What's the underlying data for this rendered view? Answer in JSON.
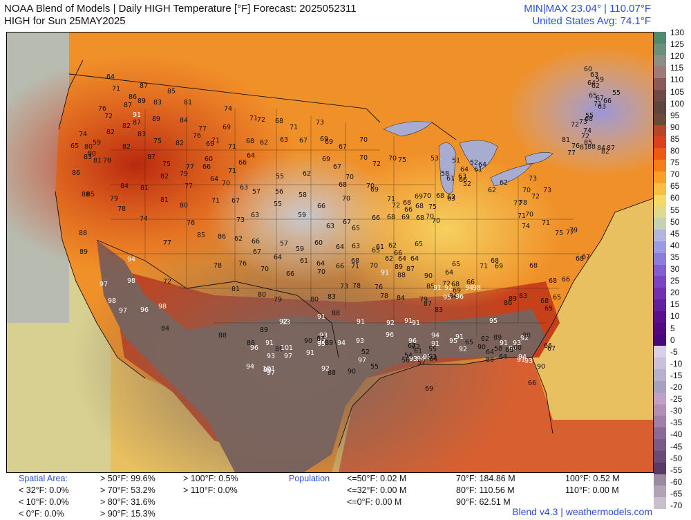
{
  "header": {
    "line1": "NOAA Blend of Models | Daily HIGH Temperature [°F] Forecast: 2025052311",
    "line2": "HIGH for Sun 25MAY2025",
    "minmax": "MIN|MAX 23.04° | 110.07°F",
    "avg": "United States Avg: 74.1°F"
  },
  "colorbar": {
    "ticks": [
      "130",
      "125",
      "120",
      "115",
      "110",
      "105",
      "100",
      "95",
      "90",
      "85",
      "80",
      "75",
      "70",
      "65",
      "60",
      "55",
      "50",
      "45",
      "40",
      "35",
      "30",
      "25",
      "20",
      "15",
      "10",
      "5",
      "0",
      "-5",
      "-10",
      "-15",
      "-20",
      "-25",
      "-30",
      "-35",
      "-40",
      "-45",
      "-50",
      "-55",
      "-60",
      "-65",
      "-70"
    ],
    "colors": [
      "#4e8a6e",
      "#6a8f7a",
      "#8a8f88",
      "#a07a78",
      "#8a5a58",
      "#6e4a46",
      "#5e4640",
      "#6a4a3c",
      "#b8442a",
      "#d8421c",
      "#ee5a14",
      "#f47e1c",
      "#f8a02a",
      "#fbbe44",
      "#f6d864",
      "#dcdc8c",
      "#c6d0b6",
      "#b4b4e0",
      "#9a9ae6",
      "#8c7cdc",
      "#8060d0",
      "#7a44c4",
      "#7030b0",
      "#6020a0",
      "#5a108c",
      "#500a7e",
      "#46087a",
      "#d8d0e8",
      "#c8c0dc",
      "#b8b0d0",
      "#a8a0c4",
      "#c0a0c8",
      "#b090b8",
      "#a080a8",
      "#8a6a98",
      "#7a5a88",
      "#6a4a78",
      "#5a3a68",
      "#9a8aa0",
      "#b0a4b4",
      "#c8c0cc"
    ]
  },
  "values": [
    {
      "t": "64"
    },
    {
      "t": "71"
    },
    {
      "t": "87"
    },
    {
      "t": "86"
    },
    {
      "t": "89"
    },
    {
      "t": "83"
    },
    {
      "t": "85"
    },
    {
      "t": "81"
    },
    {
      "t": "76"
    },
    {
      "t": "87"
    },
    {
      "t": "91"
    },
    {
      "t": "87"
    },
    {
      "t": "89"
    },
    {
      "t": "72"
    },
    {
      "t": "82"
    },
    {
      "t": "83"
    },
    {
      "t": "84"
    },
    {
      "t": "74"
    },
    {
      "t": "77"
    },
    {
      "t": "76"
    },
    {
      "t": "82"
    },
    {
      "t": "75"
    },
    {
      "t": "82"
    },
    {
      "t": "71"
    },
    {
      "t": "69"
    },
    {
      "t": "71"
    },
    {
      "t": "72"
    },
    {
      "t": "68"
    },
    {
      "t": "71"
    },
    {
      "t": "73"
    },
    {
      "t": "69"
    },
    {
      "t": "65"
    },
    {
      "t": "80"
    },
    {
      "t": "59"
    },
    {
      "t": "74"
    },
    {
      "t": "83"
    },
    {
      "t": "80"
    },
    {
      "t": "82"
    },
    {
      "t": "87"
    },
    {
      "t": "75"
    },
    {
      "t": "77"
    },
    {
      "t": "69"
    },
    {
      "t": "71"
    },
    {
      "t": "68"
    },
    {
      "t": "62"
    },
    {
      "t": "63"
    },
    {
      "t": "67"
    },
    {
      "t": "69"
    },
    {
      "t": "67"
    },
    {
      "t": "70"
    },
    {
      "t": "64"
    },
    {
      "t": "86"
    },
    {
      "t": "81"
    },
    {
      "t": "78"
    },
    {
      "t": "82"
    },
    {
      "t": "79"
    },
    {
      "t": "60"
    },
    {
      "t": "66"
    },
    {
      "t": "64"
    },
    {
      "t": "66"
    },
    {
      "t": "69"
    },
    {
      "t": "67"
    },
    {
      "t": "70"
    },
    {
      "t": "72"
    },
    {
      "t": "70"
    },
    {
      "t": "75"
    },
    {
      "t": "84"
    },
    {
      "t": "81"
    },
    {
      "t": "77"
    },
    {
      "t": "70"
    },
    {
      "t": "71"
    },
    {
      "t": "63"
    },
    {
      "t": "55"
    },
    {
      "t": "62"
    },
    {
      "t": "68"
    },
    {
      "t": "70"
    },
    {
      "t": "70"
    },
    {
      "t": "88"
    },
    {
      "t": "85"
    },
    {
      "t": "79"
    },
    {
      "t": "78"
    },
    {
      "t": "74"
    },
    {
      "t": "81"
    },
    {
      "t": "80"
    },
    {
      "t": "71"
    },
    {
      "t": "67"
    },
    {
      "t": "57"
    },
    {
      "t": "56"
    },
    {
      "t": "58"
    },
    {
      "t": "66"
    },
    {
      "t": "70"
    },
    {
      "t": "69"
    },
    {
      "t": "71"
    },
    {
      "t": "72"
    },
    {
      "t": "68"
    },
    {
      "t": "69"
    },
    {
      "t": "70"
    },
    {
      "t": "68"
    },
    {
      "t": "66"
    },
    {
      "t": "75"
    },
    {
      "t": "68"
    },
    {
      "t": "62"
    },
    {
      "t": "70"
    },
    {
      "t": "88"
    },
    {
      "t": "76"
    },
    {
      "t": "73"
    },
    {
      "t": "63"
    },
    {
      "t": "55"
    },
    {
      "t": "59"
    },
    {
      "t": "63"
    },
    {
      "t": "67"
    },
    {
      "t": "65"
    },
    {
      "t": "66"
    },
    {
      "t": "68"
    },
    {
      "t": "69"
    },
    {
      "t": "68"
    },
    {
      "t": "70"
    },
    {
      "t": "85"
    },
    {
      "t": "86"
    },
    {
      "t": "62"
    },
    {
      "t": "66"
    },
    {
      "t": "57"
    },
    {
      "t": "59"
    },
    {
      "t": "60"
    },
    {
      "t": "64"
    },
    {
      "t": "63"
    },
    {
      "t": "61"
    },
    {
      "t": "62"
    },
    {
      "t": "66"
    },
    {
      "t": "65"
    },
    {
      "t": "89"
    },
    {
      "t": "77"
    },
    {
      "t": "67"
    },
    {
      "t": "64"
    },
    {
      "t": "61"
    },
    {
      "t": "64"
    },
    {
      "t": "66"
    },
    {
      "t": "68"
    },
    {
      "t": "65"
    },
    {
      "t": "64"
    },
    {
      "t": "62"
    },
    {
      "t": "64"
    },
    {
      "t": "70"
    },
    {
      "t": "78"
    },
    {
      "t": "76"
    },
    {
      "t": "70"
    },
    {
      "t": "66"
    },
    {
      "t": "70"
    },
    {
      "t": "71"
    },
    {
      "t": "94"
    },
    {
      "t": "98"
    },
    {
      "t": "72"
    },
    {
      "t": "81"
    },
    {
      "t": "80"
    },
    {
      "t": "79"
    },
    {
      "t": "80"
    },
    {
      "t": "83"
    },
    {
      "t": "73"
    },
    {
      "t": "78"
    },
    {
      "t": "76"
    },
    {
      "t": "78"
    },
    {
      "t": "84"
    },
    {
      "t": "79"
    },
    {
      "t": "87"
    },
    {
      "t": "85"
    },
    {
      "t": "83"
    },
    {
      "t": "84"
    },
    {
      "t": "86"
    },
    {
      "t": "83"
    },
    {
      "t": "89"
    },
    {
      "t": "97"
    },
    {
      "t": "98"
    },
    {
      "t": "97"
    },
    {
      "t": "96"
    },
    {
      "t": "98"
    },
    {
      "t": "84"
    },
    {
      "t": "88"
    },
    {
      "t": "89"
    },
    {
      "t": "93"
    },
    {
      "t": "91"
    },
    {
      "t": "88"
    },
    {
      "t": "91"
    },
    {
      "t": "92"
    },
    {
      "t": "91"
    },
    {
      "t": "91"
    },
    {
      "t": "94"
    },
    {
      "t": "95"
    },
    {
      "t": "95"
    },
    {
      "t": "89"
    },
    {
      "t": "91"
    },
    {
      "t": "93"
    },
    {
      "t": "92"
    },
    {
      "t": "94"
    },
    {
      "t": "94"
    },
    {
      "t": "93"
    },
    {
      "t": "90"
    },
    {
      "t": "91"
    },
    {
      "t": "90"
    },
    {
      "t": "92"
    },
    {
      "t": "93"
    },
    {
      "t": "95"
    },
    {
      "t": "93"
    },
    {
      "t": "97"
    },
    {
      "t": "96"
    },
    {
      "t": "96"
    },
    {
      "t": "93"
    },
    {
      "t": "94"
    },
    {
      "t": "93"
    },
    {
      "t": "91"
    },
    {
      "t": "92"
    },
    {
      "t": "90"
    },
    {
      "t": "88"
    },
    {
      "t": "88"
    },
    {
      "t": "90"
    },
    {
      "t": "94"
    },
    {
      "t": "96"
    },
    {
      "t": "97"
    },
    {
      "t": "89"
    },
    {
      "t": "93"
    },
    {
      "t": "99"
    },
    {
      "t": "101"
    },
    {
      "t": "97"
    },
    {
      "t": "101"
    },
    {
      "t": "91"
    },
    {
      "t": "92"
    },
    {
      "t": "94"
    },
    {
      "t": "91"
    },
    {
      "t": "87"
    },
    {
      "t": "89"
    },
    {
      "t": "88"
    },
    {
      "t": "92"
    },
    {
      "t": "90"
    },
    {
      "t": "91"
    },
    {
      "t": "61"
    },
    {
      "t": "65"
    },
    {
      "t": "62"
    },
    {
      "t": "58"
    },
    {
      "t": "64"
    },
    {
      "t": "60"
    },
    {
      "t": "66"
    },
    {
      "t": "67"
    },
    {
      "t": "68"
    },
    {
      "t": "64"
    },
    {
      "t": "66"
    },
    {
      "t": "69"
    },
    {
      "t": "64"
    },
    {
      "t": "67"
    },
    {
      "t": "62"
    },
    {
      "t": "57"
    },
    {
      "t": "52"
    },
    {
      "t": "55"
    },
    {
      "t": "54"
    },
    {
      "t": "53"
    },
    {
      "t": "55"
    },
    {
      "t": "56"
    },
    {
      "t": "53"
    },
    {
      "t": "58"
    },
    {
      "t": "61"
    },
    {
      "t": "52"
    },
    {
      "t": "51"
    },
    {
      "t": "52"
    },
    {
      "t": "64"
    },
    {
      "t": "63"
    },
    {
      "t": "66"
    },
    {
      "t": "64"
    },
    {
      "t": "63"
    },
    {
      "t": "61"
    },
    {
      "t": "62"
    },
    {
      "t": "62"
    },
    {
      "t": "60"
    },
    {
      "t": "63"
    },
    {
      "t": "59"
    },
    {
      "t": "64"
    },
    {
      "t": "62"
    },
    {
      "t": "65"
    },
    {
      "t": "67"
    },
    {
      "t": "71"
    },
    {
      "t": "63"
    },
    {
      "t": "66"
    },
    {
      "t": "55"
    },
    {
      "t": "55"
    },
    {
      "t": "68"
    },
    {
      "t": "72"
    },
    {
      "t": "73"
    },
    {
      "t": "74"
    },
    {
      "t": "72"
    },
    {
      "t": "77"
    },
    {
      "t": "76"
    },
    {
      "t": "81"
    },
    {
      "t": "81"
    },
    {
      "t": "84"
    },
    {
      "t": "82"
    },
    {
      "t": "87"
    },
    {
      "t": "88"
    },
    {
      "t": "85"
    },
    {
      "t": "73"
    },
    {
      "t": "73"
    },
    {
      "t": "72"
    },
    {
      "t": "78"
    },
    {
      "t": "71"
    },
    {
      "t": "74"
    },
    {
      "t": "70"
    },
    {
      "t": "77"
    },
    {
      "t": "70"
    },
    {
      "t": "71"
    },
    {
      "t": "75"
    },
    {
      "t": "79"
    },
    {
      "t": "77"
    },
    {
      "t": "68"
    },
    {
      "t": "67"
    },
    {
      "t": "68"
    },
    {
      "t": "66"
    },
    {
      "t": "65"
    },
    {
      "t": "68"
    },
    {
      "t": "65"
    },
    {
      "t": "68"
    },
    {
      "t": "69"
    },
    {
      "t": "71"
    },
    {
      "t": "68"
    },
    {
      "t": "65"
    },
    {
      "t": "64"
    },
    {
      "t": "66"
    },
    {
      "t": "68"
    },
    {
      "t": "69"
    },
    {
      "t": "72"
    },
    {
      "t": "96"
    },
    {
      "t": "95"
    },
    {
      "t": "92"
    },
    {
      "t": "94"
    },
    {
      "t": "98"
    },
    {
      "t": "91"
    },
    {
      "t": "90"
    },
    {
      "t": "87"
    },
    {
      "t": "89"
    },
    {
      "t": "91"
    },
    {
      "t": "88"
    }
  ],
  "stats": {
    "spatial_header": "Spatial Area:",
    "spatial_col1": [
      "< 32°F: 0.0%",
      "< 10°F: 0.0%",
      "< 0°F: 0.0%"
    ],
    "spatial_col2": [
      "> 50°F: 99.6%",
      "> 70°F: 53.2%",
      "> 80°F: 31.6%",
      "> 90°F: 15.3%"
    ],
    "spatial_col3": [
      "> 100°F: 0.5%",
      "> 110°F: 0.0%"
    ],
    "pop_header": "Population",
    "pop_col1": [
      "<=50°F: 0.02 M",
      "<=32°F: 0.00 M",
      "<=0°F: 0.00 M"
    ],
    "pop_col2": [
      "70°F: 184.86 M",
      "80°F: 110.56 M",
      "90°F: 62.51 M"
    ],
    "pop_col3": [
      "100°F: 0.52 M",
      "110°F: 0.00 M"
    ]
  },
  "footer": "Blend v4.3 | weathermodels.com"
}
